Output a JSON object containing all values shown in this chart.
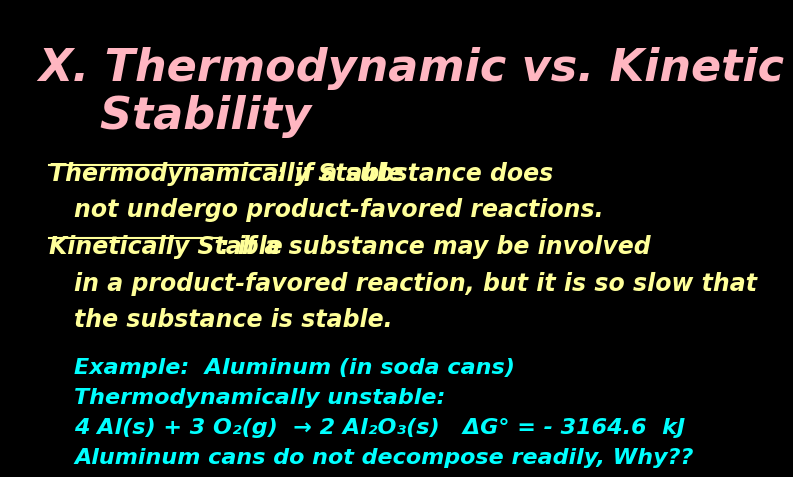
{
  "background_color": "#000000",
  "title_line1": "X. Thermodynamic vs. Kinetic",
  "title_line2": "    Stability",
  "title_color": "#FFB6C1",
  "title_fontsize": 32,
  "body_fontsize": 17,
  "body_color": "#FFFF99",
  "example_color": "#00FFFF",
  "example_fontsize": 16,
  "example_lines": [
    "Example:  Aluminum (in soda cans)",
    "Thermodynamically unstable:",
    "4 Al(s) + 3 O₂(g)  → 2 Al₂O₃(s)   ΔG° = - 3164.6  kJ",
    "Aluminum cans do not decompose readily, Why??"
  ]
}
